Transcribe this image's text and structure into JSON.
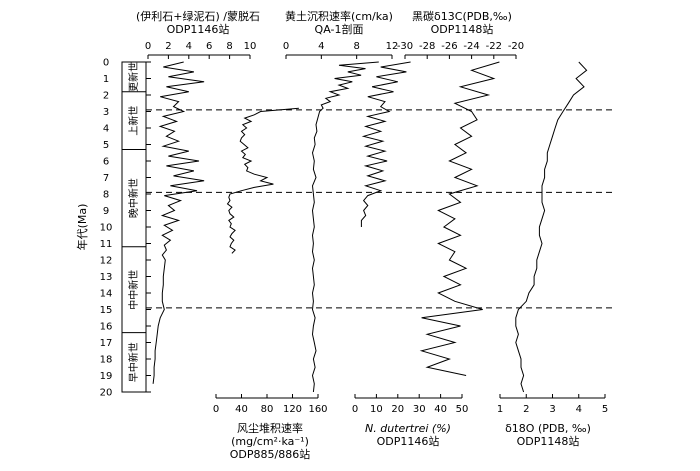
{
  "chart_data": {
    "type": "line",
    "y_axis": {
      "label": "年代(Ma)",
      "range": [
        0,
        20
      ],
      "ticks": [
        0,
        1,
        2,
        3,
        4,
        5,
        6,
        7,
        8,
        9,
        10,
        11,
        12,
        13,
        14,
        15,
        16,
        17,
        18,
        19,
        20
      ]
    },
    "epochs": [
      {
        "name": "更新世",
        "start": 0,
        "end": 1.8
      },
      {
        "name": "上新世",
        "start": 1.8,
        "end": 5.3
      },
      {
        "name": "晚中新世",
        "start": 5.3,
        "end": 11.2
      },
      {
        "name": "中中新世",
        "start": 11.2,
        "end": 16.4
      },
      {
        "name": "早中新世",
        "start": 16.4,
        "end": 20
      }
    ],
    "boundary_ages": [
      2.9,
      7.9,
      14.9
    ],
    "panels": [
      {
        "id": "clay",
        "title": [
          "(伊利石+绿泥石) /蒙脱石",
          "ODP1146站"
        ],
        "axis_position": "top",
        "xlim": [
          0,
          10
        ],
        "ticks": [
          0,
          2,
          4,
          6,
          8,
          10
        ],
        "series": [
          {
            "age": [
              0,
              0.3,
              0.6,
              0.9,
              1.2,
              1.5,
              1.8,
              2.1,
              2.4,
              2.7,
              3.0,
              3.3,
              3.6,
              3.9,
              4.2,
              4.5,
              4.8,
              5.1,
              5.4,
              5.7,
              6.0,
              6.3,
              6.6,
              6.9,
              7.2,
              7.5,
              7.8,
              8.1,
              8.4,
              8.7,
              9.0,
              9.3,
              9.6,
              9.9,
              10.2,
              10.5,
              10.8,
              11.1,
              11.4,
              11.7,
              12.0,
              12.5,
              13.0,
              13.5,
              14.0,
              14.5,
              15.0,
              15.5,
              16.0,
              16.5,
              17.0,
              17.5,
              18.0,
              18.5,
              19.0,
              19.5
            ],
            "value": [
              3.5,
              1.5,
              4.5,
              2.0,
              5.5,
              1.8,
              4.0,
              1.2,
              3.0,
              2.5,
              3.5,
              1.5,
              2.8,
              1.2,
              2.6,
              1.8,
              3.0,
              1.5,
              4.0,
              2.0,
              5.0,
              1.8,
              4.5,
              2.5,
              5.5,
              2.2,
              4.8,
              1.6,
              3.2,
              2.0,
              2.6,
              1.4,
              3.0,
              1.6,
              2.4,
              1.4,
              2.2,
              1.6,
              1.8,
              1.4,
              1.7,
              1.6,
              1.5,
              1.5,
              1.4,
              1.4,
              1.6,
              1.2,
              1.0,
              0.9,
              0.8,
              0.7,
              0.7,
              0.6,
              0.6,
              0.5
            ]
          }
        ]
      },
      {
        "id": "loess",
        "title": [
          "黄土沉积速率(cm/ka)",
          "QA-1剖面"
        ],
        "axis_position": "top",
        "xlim": [
          0,
          12
        ],
        "ticks": [
          0,
          4,
          8,
          12
        ],
        "series": [
          {
            "age": [
              0,
              0.2,
              0.4,
              0.6,
              0.8,
              1.0,
              1.2,
              1.4,
              1.6,
              1.8,
              2.0,
              2.2,
              2.4,
              2.6,
              2.8,
              3.0,
              3.4,
              3.8,
              4.2,
              4.6,
              5.0,
              5.5,
              6.0,
              6.5,
              7.0,
              7.5,
              8.0,
              8.5,
              9.0,
              9.5,
              10.0,
              10.5,
              11.0,
              11.5,
              12.0,
              12.5,
              13.0,
              13.5,
              14.0,
              14.5,
              15.0,
              15.5,
              16.0,
              16.5,
              17.0,
              17.5,
              18.0,
              18.5,
              19.0,
              19.5,
              20.0
            ],
            "value": [
              10.5,
              6.0,
              9.0,
              7.0,
              8.5,
              5.5,
              7.5,
              6.0,
              7.0,
              5.0,
              6.0,
              4.5,
              5.0,
              4.0,
              4.2,
              3.8,
              3.6,
              3.4,
              3.5,
              3.2,
              3.3,
              3.0,
              3.2,
              3.1,
              3.4,
              3.0,
              3.1,
              3.2,
              3.0,
              3.1,
              3.2,
              3.0,
              3.1,
              3.0,
              3.2,
              3.0,
              3.1,
              3.2,
              3.0,
              3.1,
              3.0,
              3.3,
              3.1,
              3.0,
              3.2,
              3.4,
              3.1,
              3.3,
              3.0,
              3.2,
              3.1
            ]
          }
        ]
      },
      {
        "id": "bc",
        "title": [
          "黑碳δ13C(PDB,‰)",
          "ODP1148站"
        ],
        "axis_position": "top",
        "xlim": [
          -30,
          -20
        ],
        "ticks": [
          -30,
          -28,
          -26,
          -24,
          -22,
          -20
        ],
        "series": [
          {
            "age": [
              0,
              0.5,
              1.0,
              1.5,
              2.0,
              2.5,
              3.0,
              3.5,
              4.0,
              4.5,
              5.0,
              5.5,
              6.0,
              6.5,
              7.0,
              7.5,
              8.0,
              8.5,
              9.0,
              9.5,
              10.0,
              10.5,
              11.0,
              11.5,
              12.0,
              12.5,
              13.0,
              13.5,
              14.0,
              14.5,
              15.0,
              15.5,
              16.0,
              16.5,
              17.0,
              17.5,
              18.0,
              18.5,
              19.0
            ],
            "value": [
              -21.5,
              -24.0,
              -22.0,
              -25.0,
              -22.5,
              -25.5,
              -24.0,
              -23.5,
              -25.0,
              -24.0,
              -25.5,
              -24.5,
              -26.0,
              -24.0,
              -25.5,
              -23.5,
              -26.0,
              -25.0,
              -27.0,
              -25.5,
              -26.5,
              -25.0,
              -27.0,
              -25.5,
              -26.0,
              -24.5,
              -26.5,
              -25.0,
              -27.0,
              -25.5,
              -23.0,
              -28.5,
              -25.0,
              -28.0,
              -25.5,
              -28.5,
              -26.0,
              -28.0,
              -24.5
            ]
          }
        ]
      },
      {
        "id": "d18o",
        "title": [
          "δ18O (PDB, ‰)",
          "ODP1148站"
        ],
        "axis_position": "bottom",
        "xlim": [
          1,
          5
        ],
        "ticks": [
          1,
          2,
          3,
          4,
          5
        ],
        "series": [
          {
            "age": [
              0,
              0.5,
              1.0,
              1.5,
              2.0,
              2.5,
              3.0,
              3.5,
              4.0,
              4.5,
              5.0,
              5.5,
              6.0,
              6.5,
              7.0,
              7.5,
              8.0,
              8.5,
              9.0,
              9.5,
              10.0,
              10.5,
              11.0,
              11.5,
              12.0,
              12.5,
              13.0,
              13.5,
              14.0,
              14.5,
              15.0,
              15.5,
              16.0,
              16.5,
              17.0,
              17.5,
              18.0,
              18.5,
              19.0,
              19.5,
              20.0
            ],
            "value": [
              4.0,
              4.3,
              3.9,
              4.2,
              3.8,
              3.6,
              3.4,
              3.2,
              3.1,
              3.0,
              2.9,
              2.8,
              2.8,
              2.7,
              2.7,
              2.6,
              2.6,
              2.6,
              2.7,
              2.6,
              2.5,
              2.5,
              2.6,
              2.5,
              2.4,
              2.4,
              2.3,
              2.3,
              2.1,
              2.0,
              1.7,
              1.6,
              1.6,
              1.7,
              1.6,
              1.7,
              1.8,
              1.8,
              1.9,
              1.8,
              1.9
            ]
          }
        ]
      },
      {
        "id": "dust",
        "title": [
          "风尘堆积速率",
          "(mg/cm²·ka⁻¹)",
          "ODP885/886站"
        ],
        "axis_position": "bottom",
        "xlim": [
          0,
          160
        ],
        "ticks": [
          0,
          40,
          80,
          120,
          160
        ],
        "series": [
          {
            "age": [
              2.8,
              3.0,
              3.2,
              3.4,
              3.6,
              3.8,
              4.0,
              4.2,
              4.4,
              4.6,
              4.8,
              5.0,
              5.2,
              5.4,
              5.6,
              5.8,
              6.0,
              6.2,
              6.4,
              6.6,
              6.8,
              7.0,
              7.2,
              7.4,
              7.6,
              7.8,
              8.0,
              8.2,
              8.4,
              8.6,
              8.8,
              9.0,
              9.2,
              9.4,
              9.6,
              9.8,
              10.0,
              10.2,
              10.4,
              10.6,
              10.8,
              11.0,
              11.2,
              11.4,
              11.6
            ],
            "value": [
              130,
              70,
              60,
              45,
              55,
              42,
              48,
              40,
              45,
              40,
              38,
              44,
              50,
              40,
              46,
              42,
              55,
              45,
              50,
              48,
              60,
              80,
              70,
              90,
              60,
              40,
              22,
              20,
              22,
              18,
              25,
              20,
              22,
              28,
              20,
              24,
              22,
              30,
              25,
              22,
              28,
              24,
              22,
              30,
              25
            ]
          }
        ]
      },
      {
        "id": "nd",
        "title": [
          "N. dutertrei (%)",
          "ODP1146站"
        ],
        "axis_position": "bottom",
        "xlim": [
          0,
          50
        ],
        "ticks": [
          0,
          10,
          20,
          30,
          40,
          50
        ],
        "series": [
          {
            "age": [
              0,
              0.3,
              0.6,
              0.9,
              1.2,
              1.5,
              1.8,
              2.1,
              2.4,
              2.7,
              3.0,
              3.3,
              3.6,
              3.9,
              4.2,
              4.5,
              4.8,
              5.1,
              5.4,
              5.7,
              6.0,
              6.3,
              6.6,
              6.9,
              7.2,
              7.5,
              7.8,
              8.1,
              8.4,
              8.7,
              9.0,
              9.3,
              9.6,
              10.0
            ],
            "value": [
              26,
              12,
              24,
              10,
              20,
              8,
              18,
              6,
              14,
              12,
              16,
              6,
              14,
              5,
              12,
              4,
              13,
              5,
              14,
              6,
              15,
              5,
              13,
              6,
              14,
              5,
              12,
              6,
              4,
              6,
              4,
              5,
              3,
              3
            ]
          }
        ]
      }
    ]
  }
}
